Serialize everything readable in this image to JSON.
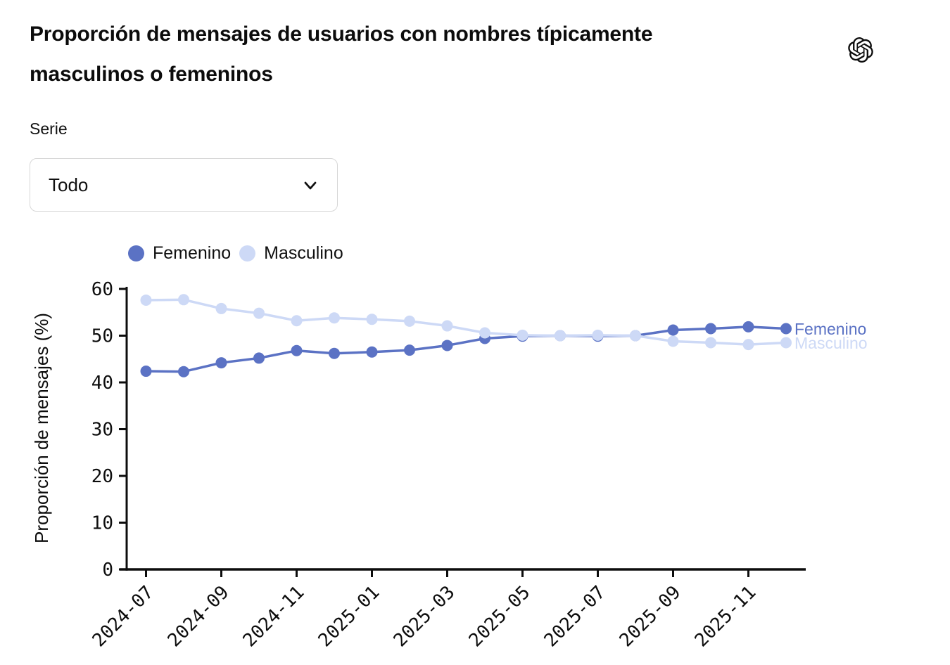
{
  "header": {
    "title": "Proporción de mensajes de usuarios con nombres típicamente masculinos o femeninos",
    "logo_icon": "openai-logo"
  },
  "controls": {
    "label": "Serie",
    "dropdown_value": "Todo",
    "dropdown_icon": "chevron-down-icon"
  },
  "legend": {
    "items": [
      {
        "label": "Femenino",
        "color": "#5b72c4"
      },
      {
        "label": "Masculino",
        "color": "#cdd9f6"
      }
    ]
  },
  "chart_data": {
    "type": "line",
    "title": "Proporción de mensajes de usuarios con nombres típicamente masculinos o femeninos",
    "x": [
      "2024-07",
      "2024-08",
      "2024-09",
      "2024-10",
      "2024-11",
      "2024-12",
      "2025-01",
      "2025-02",
      "2025-03",
      "2025-04",
      "2025-05",
      "2025-06",
      "2025-07",
      "2025-08",
      "2025-09",
      "2025-10",
      "2025-11",
      "2025-12"
    ],
    "series": [
      {
        "name": "Femenino",
        "color": "#5b72c4",
        "values": [
          42.4,
          42.3,
          44.2,
          45.2,
          46.8,
          46.2,
          46.5,
          46.9,
          47.9,
          49.4,
          49.9,
          50.0,
          49.9,
          50.0,
          51.2,
          51.5,
          51.9,
          51.5
        ]
      },
      {
        "name": "Masculino",
        "color": "#cdd9f6",
        "values": [
          57.6,
          57.7,
          55.8,
          54.8,
          53.2,
          53.8,
          53.5,
          53.1,
          52.1,
          50.6,
          50.1,
          50.0,
          50.1,
          50.0,
          48.8,
          48.5,
          48.1,
          48.5
        ]
      }
    ],
    "xlabel": "",
    "ylabel": "Proporción de mensajes (%)",
    "ylim": [
      0,
      60
    ],
    "yticks": [
      0,
      10,
      20,
      30,
      40,
      50,
      60
    ],
    "xtick_labels": [
      "2024-07",
      "2024-09",
      "2024-11",
      "2025-01",
      "2025-03",
      "2025-05",
      "2025-07",
      "2025-09",
      "2025-11"
    ],
    "xtick_rotation_deg": -45,
    "end_labels": [
      "Femenino",
      "Masculino"
    ],
    "grid": false,
    "legend_position": "top-left"
  },
  "colors": {
    "series_femenino": "#5b72c4",
    "series_masculino": "#cdd9f6",
    "axis": "#0d0d0d",
    "dropdown_border": "#d7d7d7"
  }
}
